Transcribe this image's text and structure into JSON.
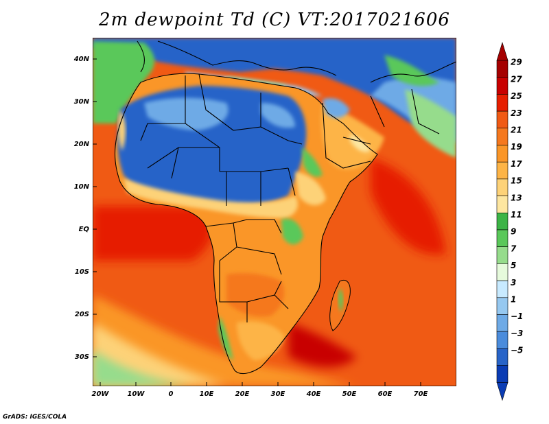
{
  "title": "2m dewpoint Td (C) VT:2017021606",
  "credit": "GrADS: IGES/COLA",
  "map": {
    "lon_ticks": [
      "20W",
      "10W",
      "0",
      "10E",
      "20E",
      "30E",
      "40E",
      "50E",
      "60E",
      "70E"
    ],
    "lat_ticks": [
      "40N",
      "30N",
      "20N",
      "10N",
      "EQ",
      "10S",
      "20S",
      "30S"
    ]
  },
  "colorbar": {
    "labels": [
      "29",
      "27",
      "25",
      "23",
      "21",
      "19",
      "17",
      "15",
      "13",
      "11",
      "9",
      "7",
      "5",
      "3",
      "1",
      "−1",
      "−3",
      "−5"
    ],
    "colors": [
      "#a50000",
      "#c80000",
      "#e61e00",
      "#f05a14",
      "#f5781e",
      "#fa9628",
      "#fdb446",
      "#fdd278",
      "#fde6a0",
      "#3cb446",
      "#5ac85a",
      "#96dc8c",
      "#e6fadc",
      "#c8eaff",
      "#96c8f0",
      "#6eaae6",
      "#4b8cdc",
      "#2864c8",
      "#0a3cb4"
    ]
  },
  "colors": {
    "land_cold": "#2864c8",
    "land_cool": "#6eaae6",
    "land_green": "#5ac85a",
    "land_warm": "#fdb446",
    "ocean_warm": "#f05a14",
    "ocean_hot": "#e61e00",
    "ocean_cool": "#fdd278"
  }
}
